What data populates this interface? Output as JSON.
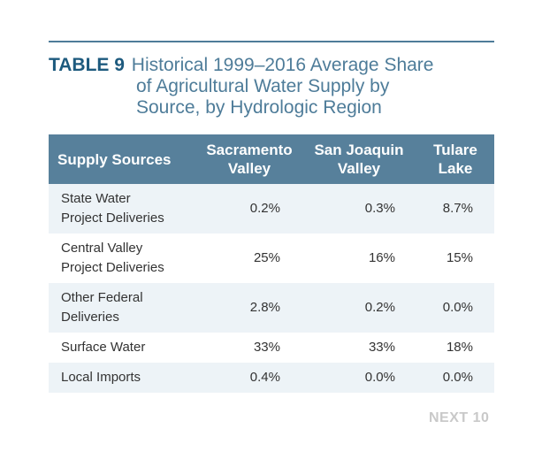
{
  "title": {
    "label": "TABLE 9",
    "lines": [
      "Historical 1999–2016 Average Share",
      "of Agricultural Water Supply by",
      "Source, by Hydrologic Region"
    ]
  },
  "table": {
    "headers": [
      {
        "line1": "Supply Sources",
        "line2": ""
      },
      {
        "line1": "Sacramento",
        "line2": "Valley"
      },
      {
        "line1": "San Joaquin",
        "line2": "Valley"
      },
      {
        "line1": "Tulare",
        "line2": "Lake"
      }
    ],
    "rows": [
      {
        "source_line1": "State Water",
        "source_line2": "Project Deliveries",
        "sacramento": "0.2%",
        "san_joaquin": "0.3%",
        "tulare": "8.7%"
      },
      {
        "source_line1": "Central Valley",
        "source_line2": "Project Deliveries",
        "sacramento": "25%",
        "san_joaquin": "16%",
        "tulare": "15%"
      },
      {
        "source_line1": "Other Federal",
        "source_line2": "Deliveries",
        "sacramento": "2.8%",
        "san_joaquin": "0.2%",
        "tulare": "0.0%"
      },
      {
        "source_line1": "Surface Water",
        "source_line2": "",
        "sacramento": "33%",
        "san_joaquin": "33%",
        "tulare": "18%"
      },
      {
        "source_line1": "Local Imports",
        "source_line2": "",
        "sacramento": "0.4%",
        "san_joaquin": "0.0%",
        "tulare": "0.0%"
      }
    ]
  },
  "footer": {
    "logo": "NEXT 10"
  }
}
